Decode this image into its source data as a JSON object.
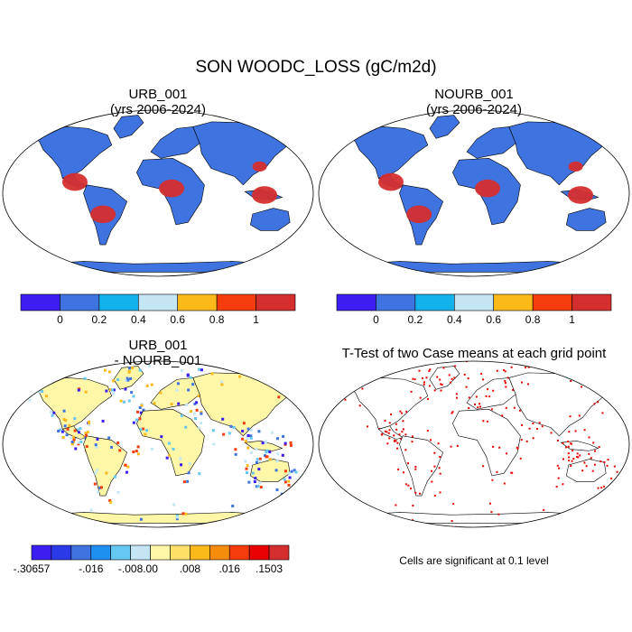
{
  "title": "SON WOODC_LOSS (gC/m2d)",
  "panels": {
    "urb": {
      "title_line1": "URB_001",
      "title_line2": "(yrs 2006-2024)"
    },
    "nourb": {
      "title_line1": "NOURB_001",
      "title_line2": "(yrs 2006-2024)"
    },
    "diff": {
      "title_line1": "URB_001",
      "title_line2": "- NOURB_001"
    },
    "ttest": {
      "title": "T-Test of two Case means at each grid point",
      "note": "Cells are significant at 0.1 level"
    }
  },
  "colors": {
    "ocean": "#ffffff",
    "land_low": "#3e73e0",
    "land_high": "#d42e2e",
    "coast": "#000000",
    "significant": "#e60000"
  },
  "chart_data": [
    {
      "type": "heatmap",
      "title": "URB_001 (yrs 2006-2024)",
      "colorbar": {
        "levels": [
          0,
          0.2,
          0.4,
          0.6,
          0.8,
          1
        ],
        "labels": [
          "0",
          "0.2",
          "0.4",
          "0.6",
          "0.8",
          "1"
        ],
        "colors": [
          "#3a1ef2",
          "#3e73e0",
          "#14b2ec",
          "#c4e6f4",
          "#fbba1a",
          "#f53c0c",
          "#d42e2e"
        ]
      }
    },
    {
      "type": "heatmap",
      "title": "NOURB_001 (yrs 2006-2024)",
      "colorbar": {
        "levels": [
          0,
          0.2,
          0.4,
          0.6,
          0.8,
          1
        ],
        "labels": [
          "0",
          "0.2",
          "0.4",
          "0.6",
          "0.8",
          "1"
        ],
        "colors": [
          "#3a1ef2",
          "#3e73e0",
          "#14b2ec",
          "#c4e6f4",
          "#fbba1a",
          "#f53c0c",
          "#d42e2e"
        ]
      }
    },
    {
      "type": "heatmap",
      "title": "URB_001 - NOURB_001",
      "colorbar": {
        "levels": [
          -0.30657,
          -0.016,
          -0.012,
          -0.008,
          -0.004,
          0,
          0.004,
          0.008,
          0.012,
          0.016,
          0.02,
          0.1503
        ],
        "labels": [
          "-.30657",
          "-.016",
          "-.008",
          ".00",
          ".008",
          ".016",
          ".1503"
        ],
        "colors": [
          "#3a1ef2",
          "#2a3ae8",
          "#3e73e0",
          "#1e90f0",
          "#64c8f0",
          "#c4e6f4",
          "#fff7a8",
          "#ffe066",
          "#fbba1a",
          "#f58c0c",
          "#f53c0c",
          "#e60000",
          "#d42e2e"
        ]
      }
    },
    {
      "type": "heatmap",
      "title": "T-Test of two Case means at each grid point"
    }
  ]
}
